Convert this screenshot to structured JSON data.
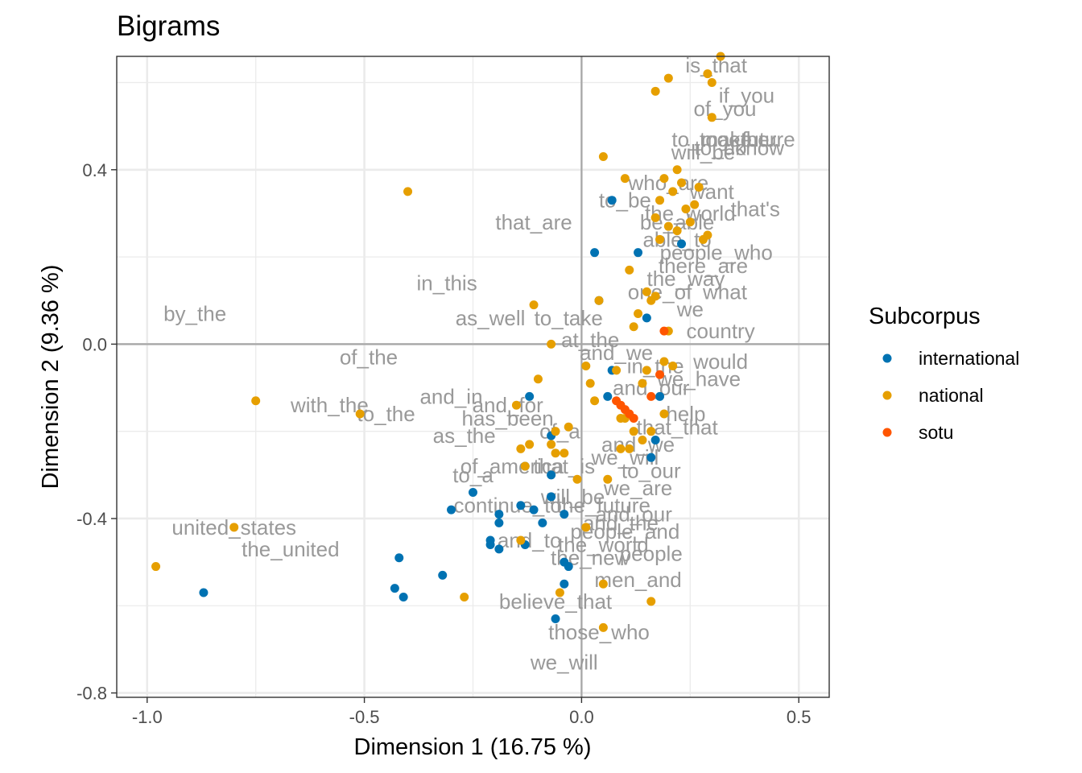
{
  "chart_data": {
    "type": "scatter",
    "title": "Bigrams",
    "xlabel": "Dimension 1 (16.75 %)",
    "ylabel": "Dimension 2 (9.36 %)",
    "xlim": [
      -1.07,
      0.57
    ],
    "ylim": [
      -0.81,
      0.66
    ],
    "x_ticks": [
      -1.0,
      -0.5,
      0.0,
      0.5
    ],
    "x_tick_labels": [
      "-1.0",
      "-0.5",
      "0.0",
      "0.5"
    ],
    "y_ticks": [
      -0.8,
      -0.4,
      0.0,
      0.4
    ],
    "y_tick_labels": [
      "-0.8",
      "-0.4",
      "0.0",
      "0.4"
    ],
    "grid": true,
    "reference_lines": {
      "x": 0,
      "y": 0
    },
    "legend": {
      "title": "Subcorpus",
      "position": "right",
      "entries": [
        {
          "name": "international",
          "color": "#0072B2"
        },
        {
          "name": "national",
          "color": "#E69F00"
        },
        {
          "name": "sotu",
          "color": "#FF5500"
        }
      ]
    },
    "series": [
      {
        "name": "international",
        "color": "#0072B2",
        "points": [
          [
            -0.87,
            -0.57
          ],
          [
            -0.41,
            -0.58
          ],
          [
            -0.42,
            -0.49
          ],
          [
            -0.43,
            -0.56
          ],
          [
            -0.32,
            -0.53
          ],
          [
            -0.3,
            -0.38
          ],
          [
            -0.25,
            -0.34
          ],
          [
            -0.21,
            -0.45
          ],
          [
            -0.21,
            -0.46
          ],
          [
            -0.19,
            -0.39
          ],
          [
            -0.19,
            -0.41
          ],
          [
            -0.19,
            -0.47
          ],
          [
            -0.14,
            -0.37
          ],
          [
            -0.13,
            -0.28
          ],
          [
            -0.13,
            -0.46
          ],
          [
            -0.12,
            -0.12
          ],
          [
            -0.11,
            -0.38
          ],
          [
            -0.09,
            -0.41
          ],
          [
            -0.07,
            -0.35
          ],
          [
            -0.07,
            -0.3
          ],
          [
            -0.07,
            -0.21
          ],
          [
            -0.06,
            -0.63
          ],
          [
            -0.04,
            -0.5
          ],
          [
            -0.04,
            -0.39
          ],
          [
            -0.04,
            -0.55
          ],
          [
            -0.03,
            -0.51
          ],
          [
            0.03,
            0.21
          ],
          [
            0.06,
            -0.12
          ],
          [
            0.07,
            -0.06
          ],
          [
            0.07,
            0.33
          ],
          [
            0.13,
            0.21
          ],
          [
            0.15,
            0.06
          ],
          [
            0.16,
            -0.26
          ],
          [
            0.17,
            -0.22
          ],
          [
            0.18,
            -0.12
          ],
          [
            0.04,
            0.1
          ],
          [
            0.23,
            0.23
          ]
        ]
      },
      {
        "name": "national",
        "color": "#E69F00",
        "points": [
          [
            -0.98,
            -0.51
          ],
          [
            -0.8,
            -0.42
          ],
          [
            -0.75,
            -0.13
          ],
          [
            -0.51,
            -0.16
          ],
          [
            -0.4,
            0.35
          ],
          [
            -0.27,
            -0.58
          ],
          [
            -0.15,
            -0.14
          ],
          [
            -0.14,
            -0.24
          ],
          [
            -0.14,
            -0.45
          ],
          [
            -0.13,
            -0.28
          ],
          [
            -0.12,
            -0.23
          ],
          [
            -0.11,
            0.09
          ],
          [
            -0.1,
            -0.08
          ],
          [
            -0.07,
            -0.23
          ],
          [
            -0.07,
            0.0
          ],
          [
            -0.06,
            -0.25
          ],
          [
            -0.06,
            -0.2
          ],
          [
            -0.05,
            -0.57
          ],
          [
            -0.04,
            -0.25
          ],
          [
            -0.03,
            -0.19
          ],
          [
            -0.01,
            -0.31
          ],
          [
            0.01,
            -0.42
          ],
          [
            0.01,
            -0.05
          ],
          [
            0.02,
            -0.09
          ],
          [
            0.03,
            -0.13
          ],
          [
            0.04,
            0.1
          ],
          [
            0.05,
            -0.55
          ],
          [
            0.05,
            -0.65
          ],
          [
            0.05,
            0.43
          ],
          [
            0.06,
            -0.31
          ],
          [
            0.08,
            -0.06
          ],
          [
            0.09,
            -0.17
          ],
          [
            0.09,
            -0.24
          ],
          [
            0.1,
            0.38
          ],
          [
            0.11,
            -0.24
          ],
          [
            0.11,
            0.17
          ],
          [
            0.12,
            0.04
          ],
          [
            0.13,
            0.07
          ],
          [
            0.14,
            -0.09
          ],
          [
            0.15,
            0.12
          ],
          [
            0.15,
            -0.06
          ],
          [
            0.16,
            0.1
          ],
          [
            0.16,
            -0.59
          ],
          [
            0.17,
            0.58
          ],
          [
            0.17,
            0.11
          ],
          [
            0.17,
            0.29
          ],
          [
            0.18,
            0.24
          ],
          [
            0.18,
            0.33
          ],
          [
            0.19,
            0.38
          ],
          [
            0.19,
            -0.04
          ],
          [
            0.2,
            0.61
          ],
          [
            0.2,
            0.03
          ],
          [
            0.2,
            0.27
          ],
          [
            0.21,
            0.35
          ],
          [
            0.21,
            -0.05
          ],
          [
            0.22,
            0.26
          ],
          [
            0.22,
            0.4
          ],
          [
            0.23,
            0.37
          ],
          [
            0.24,
            0.31
          ],
          [
            0.25,
            0.28
          ],
          [
            0.27,
            0.36
          ],
          [
            0.28,
            0.24
          ],
          [
            0.29,
            0.25
          ],
          [
            0.29,
            0.62
          ],
          [
            0.3,
            0.52
          ],
          [
            0.3,
            0.6
          ],
          [
            0.32,
            0.66
          ],
          [
            0.1,
            -0.17
          ],
          [
            0.12,
            -0.2
          ],
          [
            0.14,
            -0.22
          ],
          [
            0.16,
            -0.2
          ],
          [
            0.26,
            0.32
          ],
          [
            0.19,
            -0.16
          ]
        ]
      },
      {
        "name": "sotu",
        "color": "#FF5500",
        "points": [
          [
            0.08,
            -0.13
          ],
          [
            0.09,
            -0.14
          ],
          [
            0.1,
            -0.15
          ],
          [
            0.11,
            -0.16
          ],
          [
            0.12,
            -0.17
          ],
          [
            0.16,
            -0.12
          ],
          [
            0.18,
            -0.07
          ],
          [
            0.19,
            0.03
          ]
        ]
      }
    ],
    "labels": [
      {
        "text": "is_that",
        "x": 0.31,
        "y": 0.64
      },
      {
        "text": "if_you",
        "x": 0.38,
        "y": 0.57
      },
      {
        "text": "of_you",
        "x": 0.33,
        "y": 0.54
      },
      {
        "text": "to_make",
        "x": 0.3,
        "y": 0.47
      },
      {
        "text": "together",
        "x": 0.36,
        "y": 0.47
      },
      {
        "text": "future",
        "x": 0.43,
        "y": 0.47
      },
      {
        "text": "will_be",
        "x": 0.28,
        "y": 0.44
      },
      {
        "text": "to_do",
        "x": 0.32,
        "y": 0.45
      },
      {
        "text": "know",
        "x": 0.41,
        "y": 0.45
      },
      {
        "text": "who_are",
        "x": 0.2,
        "y": 0.37
      },
      {
        "text": "to_be",
        "x": 0.1,
        "y": 0.33
      },
      {
        "text": "want",
        "x": 0.3,
        "y": 0.35
      },
      {
        "text": "that's",
        "x": 0.4,
        "y": 0.31
      },
      {
        "text": "the_world",
        "x": 0.25,
        "y": 0.3
      },
      {
        "text": "be_able",
        "x": 0.22,
        "y": 0.28
      },
      {
        "text": "that_are",
        "x": -0.11,
        "y": 0.28
      },
      {
        "text": "able_to",
        "x": 0.22,
        "y": 0.24
      },
      {
        "text": "people_who",
        "x": 0.31,
        "y": 0.21
      },
      {
        "text": "there_are",
        "x": 0.28,
        "y": 0.18
      },
      {
        "text": "in_this",
        "x": -0.31,
        "y": 0.14
      },
      {
        "text": "the_way",
        "x": 0.24,
        "y": 0.15
      },
      {
        "text": "one_of",
        "x": 0.18,
        "y": 0.12
      },
      {
        "text": "what",
        "x": 0.33,
        "y": 0.12
      },
      {
        "text": "by_the",
        "x": -0.89,
        "y": 0.07
      },
      {
        "text": "as_well",
        "x": -0.21,
        "y": 0.06
      },
      {
        "text": "to_take",
        "x": -0.03,
        "y": 0.06
      },
      {
        "text": "we",
        "x": 0.25,
        "y": 0.08
      },
      {
        "text": "country",
        "x": 0.32,
        "y": 0.03
      },
      {
        "text": "at_the",
        "x": 0.02,
        "y": 0.01
      },
      {
        "text": "of_the",
        "x": -0.49,
        "y": -0.03
      },
      {
        "text": "and_we",
        "x": 0.08,
        "y": -0.02
      },
      {
        "text": "would",
        "x": 0.32,
        "y": -0.04
      },
      {
        "text": "in_the",
        "x": 0.17,
        "y": -0.05
      },
      {
        "text": "we_have",
        "x": 0.27,
        "y": -0.08
      },
      {
        "text": "and_our",
        "x": 0.16,
        "y": -0.1
      },
      {
        "text": "with_the",
        "x": -0.58,
        "y": -0.14
      },
      {
        "text": "to_the",
        "x": -0.45,
        "y": -0.16
      },
      {
        "text": "and_in",
        "x": -0.3,
        "y": -0.12
      },
      {
        "text": "and_for",
        "x": -0.17,
        "y": -0.14
      },
      {
        "text": "has_been",
        "x": -0.17,
        "y": -0.17
      },
      {
        "text": "help",
        "x": 0.24,
        "y": -0.16
      },
      {
        "text": "that_that",
        "x": 0.22,
        "y": -0.19
      },
      {
        "text": "as_the",
        "x": -0.27,
        "y": -0.21
      },
      {
        "text": "of_a",
        "x": -0.05,
        "y": -0.2
      },
      {
        "text": "and_we",
        "x": 0.13,
        "y": -0.23
      },
      {
        "text": "we_will",
        "x": 0.1,
        "y": -0.26
      },
      {
        "text": "of_america",
        "x": -0.16,
        "y": -0.28
      },
      {
        "text": "that_is",
        "x": -0.04,
        "y": -0.28
      },
      {
        "text": "to_our",
        "x": 0.16,
        "y": -0.29
      },
      {
        "text": "to_a",
        "x": -0.25,
        "y": -0.3
      },
      {
        "text": "we_are",
        "x": 0.13,
        "y": -0.33
      },
      {
        "text": "continue_to",
        "x": -0.17,
        "y": -0.37
      },
      {
        "text": "will_be",
        "x": -0.02,
        "y": -0.35
      },
      {
        "text": "the_future",
        "x": 0.05,
        "y": -0.37
      },
      {
        "text": "and_our",
        "x": 0.12,
        "y": -0.39
      },
      {
        "text": "and_the",
        "x": 0.09,
        "y": -0.41
      },
      {
        "text": "people_and",
        "x": 0.1,
        "y": -0.43
      },
      {
        "text": "and_to",
        "x": -0.12,
        "y": -0.45
      },
      {
        "text": "the_world",
        "x": 0.05,
        "y": -0.46
      },
      {
        "text": "the_new",
        "x": 0.02,
        "y": -0.49
      },
      {
        "text": "people",
        "x": 0.16,
        "y": -0.48
      },
      {
        "text": "men_and",
        "x": 0.13,
        "y": -0.54
      },
      {
        "text": "believe_that",
        "x": -0.06,
        "y": -0.59
      },
      {
        "text": "united_states",
        "x": -0.8,
        "y": -0.42
      },
      {
        "text": "the_united",
        "x": -0.67,
        "y": -0.47
      },
      {
        "text": "those_who",
        "x": 0.04,
        "y": -0.66
      },
      {
        "text": "we_will",
        "x": -0.04,
        "y": -0.73
      }
    ]
  }
}
